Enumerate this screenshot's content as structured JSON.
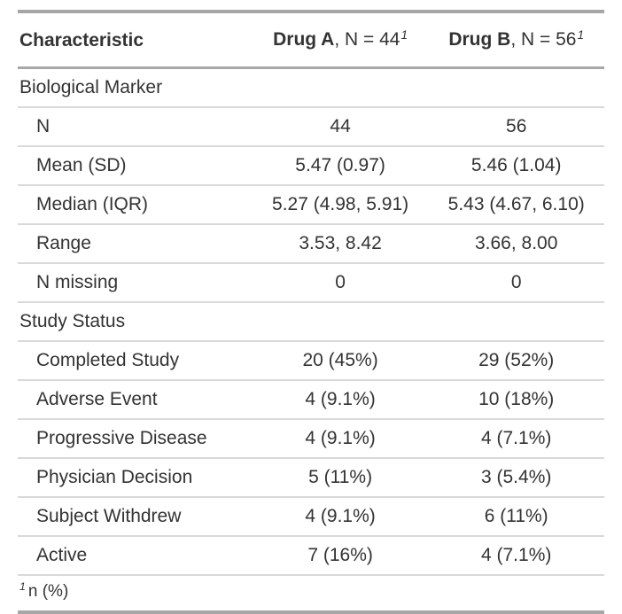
{
  "table": {
    "header": {
      "characteristic": "Characteristic",
      "drug_a": {
        "name": "Drug A",
        "suffix": ", N = 44",
        "footnote_mark": "1"
      },
      "drug_b": {
        "name": "Drug B",
        "suffix": ", N = 56",
        "footnote_mark": "1"
      }
    },
    "rows": [
      {
        "type": "group",
        "label": "Biological Marker",
        "drug_a": "",
        "drug_b": ""
      },
      {
        "type": "data",
        "label": "N",
        "drug_a": "44",
        "drug_b": "56"
      },
      {
        "type": "data",
        "label": "Mean (SD)",
        "drug_a": "5.47 (0.97)",
        "drug_b": "5.46 (1.04)"
      },
      {
        "type": "data",
        "label": "Median (IQR)",
        "drug_a": "5.27 (4.98, 5.91)",
        "drug_b": "5.43 (4.67, 6.10)"
      },
      {
        "type": "data",
        "label": "Range",
        "drug_a": "3.53, 8.42",
        "drug_b": "3.66, 8.00"
      },
      {
        "type": "data",
        "label": "N missing",
        "drug_a": "0",
        "drug_b": "0"
      },
      {
        "type": "group",
        "label": "Study Status",
        "drug_a": "",
        "drug_b": ""
      },
      {
        "type": "data",
        "label": "Completed Study",
        "drug_a": "20 (45%)",
        "drug_b": "29 (52%)"
      },
      {
        "type": "data",
        "label": "Adverse Event",
        "drug_a": "4 (9.1%)",
        "drug_b": "10 (18%)"
      },
      {
        "type": "data",
        "label": "Progressive Disease",
        "drug_a": "4 (9.1%)",
        "drug_b": "4 (7.1%)"
      },
      {
        "type": "data",
        "label": "Physician Decision",
        "drug_a": "5 (11%)",
        "drug_b": "3 (5.4%)"
      },
      {
        "type": "data",
        "label": "Subject Withdrew",
        "drug_a": "4 (9.1%)",
        "drug_b": "6 (11%)"
      },
      {
        "type": "data",
        "label": "Active",
        "drug_a": "7 (16%)",
        "drug_b": "4 (7.1%)"
      }
    ],
    "footnote": {
      "mark": "1",
      "text": "n (%)"
    },
    "colors": {
      "text": "#333333",
      "border_heavy": "#a6a6a6",
      "border_header": "#a8a8a8",
      "border_row": "#d9d9d9",
      "background": "#ffffff"
    }
  }
}
